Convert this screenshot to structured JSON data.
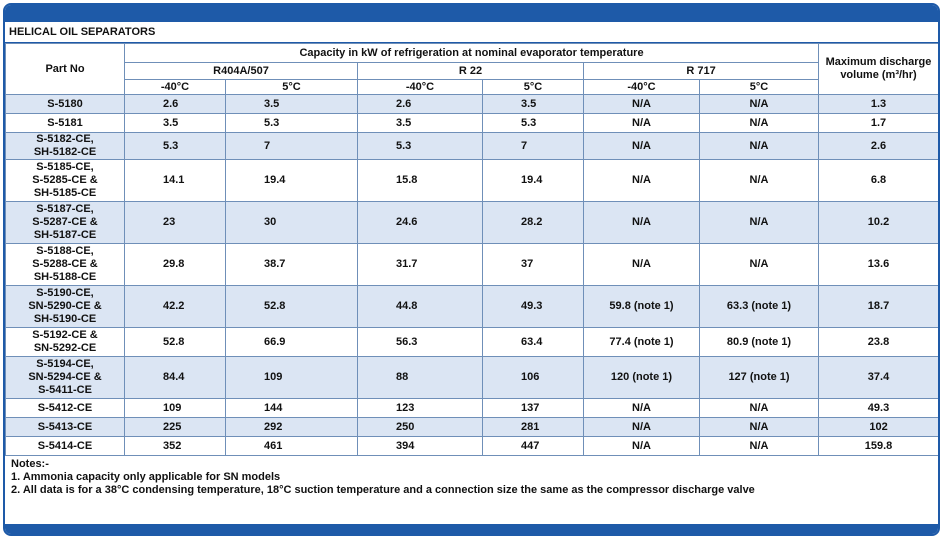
{
  "title": "HELICAL OIL SEPARATORS",
  "header": {
    "part_no": "Part No",
    "capacity": "Capacity in kW of refrigeration at nominal evaporator temperature",
    "max_discharge": "Maximum discharge volume (m³/hr)",
    "refrigerants": [
      "R404A/507",
      "R 22",
      "R 717"
    ],
    "temps": [
      "-40°C",
      "5°C",
      "-40°C",
      "5°C",
      "-40°C",
      "5°C"
    ]
  },
  "rows": [
    {
      "part": [
        "S-5180"
      ],
      "vals": [
        "2.6",
        "3.5",
        "2.6",
        "3.5",
        "N/A",
        "N/A",
        "1.3"
      ]
    },
    {
      "part": [
        "S-5181"
      ],
      "vals": [
        "3.5",
        "5.3",
        "3.5",
        "5.3",
        "N/A",
        "N/A",
        "1.7"
      ]
    },
    {
      "part": [
        "S-5182-CE,",
        "SH-5182-CE"
      ],
      "vals": [
        "5.3",
        "7",
        "5.3",
        "7",
        "N/A",
        "N/A",
        "2.6"
      ]
    },
    {
      "part": [
        "S-5185-CE,",
        "S-5285-CE &",
        "SH-5185-CE"
      ],
      "vals": [
        "14.1",
        "19.4",
        "15.8",
        "19.4",
        "N/A",
        "N/A",
        "6.8"
      ]
    },
    {
      "part": [
        "S-5187-CE,",
        "S-5287-CE &",
        "SH-5187-CE"
      ],
      "vals": [
        "23",
        "30",
        "24.6",
        "28.2",
        "N/A",
        "N/A",
        "10.2"
      ]
    },
    {
      "part": [
        "S-5188-CE,",
        "S-5288-CE &",
        "SH-5188-CE"
      ],
      "vals": [
        "29.8",
        "38.7",
        "31.7",
        "37",
        "N/A",
        "N/A",
        "13.6"
      ]
    },
    {
      "part": [
        "S-5190-CE,",
        "SN-5290-CE &",
        "SH-5190-CE"
      ],
      "vals": [
        "42.2",
        "52.8",
        "44.8",
        "49.3",
        "59.8 (note 1)",
        "63.3 (note 1)",
        "18.7"
      ]
    },
    {
      "part": [
        "S-5192-CE &",
        "SN-5292-CE"
      ],
      "vals": [
        "52.8",
        "66.9",
        "56.3",
        "63.4",
        "77.4 (note 1)",
        "80.9 (note 1)",
        "23.8"
      ]
    },
    {
      "part": [
        "S-5194-CE,",
        "SN-5294-CE &",
        "S-5411-CE"
      ],
      "vals": [
        "84.4",
        "109",
        "88",
        "106",
        "120 (note 1)",
        "127 (note 1)",
        "37.4"
      ]
    },
    {
      "part": [
        "S-5412-CE"
      ],
      "vals": [
        "109",
        "144",
        "123",
        "137",
        "N/A",
        "N/A",
        "49.3"
      ]
    },
    {
      "part": [
        "S-5413-CE"
      ],
      "vals": [
        "225",
        "292",
        "250",
        "281",
        "N/A",
        "N/A",
        "102"
      ]
    },
    {
      "part": [
        "S-5414-CE"
      ],
      "vals": [
        "352",
        "461",
        "394",
        "447",
        "N/A",
        "N/A",
        "159.8"
      ]
    }
  ],
  "notes": {
    "heading": "Notes:-",
    "items": [
      "1.  Ammonia capacity only applicable for SN models",
      "2.  All data is for a 38°C condensing temperature, 18°C suction temperature and a connection size the same as the compressor discharge valve"
    ]
  },
  "colors": {
    "accent": "#1e5aa8",
    "row_shade": "#dbe5f3"
  }
}
